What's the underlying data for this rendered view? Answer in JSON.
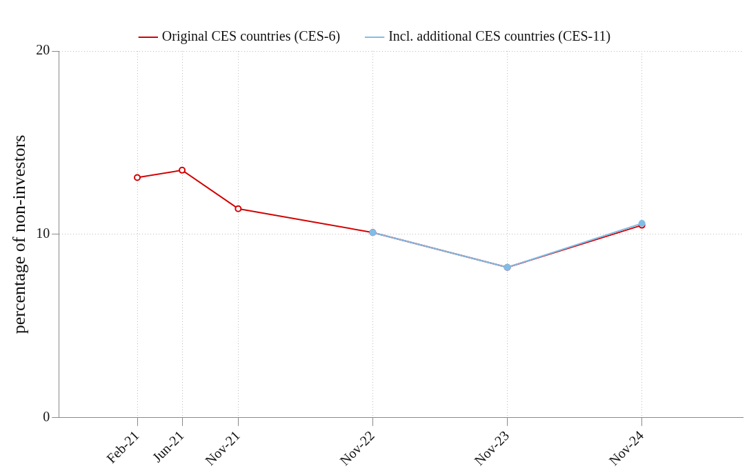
{
  "chart_data": {
    "type": "line",
    "ylabel": "percentage of non-investors",
    "xlim": [
      "2020-07",
      "2025-08"
    ],
    "xticks": [
      {
        "value": "2021-02",
        "label": "Feb-21"
      },
      {
        "value": "2021-06",
        "label": "Jun-21"
      },
      {
        "value": "2021-11",
        "label": "Nov-21"
      },
      {
        "value": "2022-11",
        "label": "Nov-22"
      },
      {
        "value": "2023-11",
        "label": "Nov-23"
      },
      {
        "value": "2024-11",
        "label": "Nov-24"
      }
    ],
    "ylim": [
      0,
      20
    ],
    "yticks": [
      0,
      10,
      20
    ],
    "grid": true,
    "legend": "top",
    "marker": "circle",
    "line_style": "solid",
    "series": [
      {
        "name": "Original CES countries (CES-6)",
        "color": "#d40000",
        "x": [
          "2021-02",
          "2021-06",
          "2021-11",
          "2022-11",
          "2023-11",
          "2024-11"
        ],
        "values": [
          13.1,
          13.5,
          11.4,
          10.1,
          8.2,
          10.5
        ]
      },
      {
        "name": "Incl. additional CES countries (CES-11)",
        "color": "#7fbde8",
        "x": [
          "2022-11",
          "2023-11",
          "2024-11"
        ],
        "values": [
          10.1,
          8.2,
          10.6
        ]
      }
    ]
  }
}
